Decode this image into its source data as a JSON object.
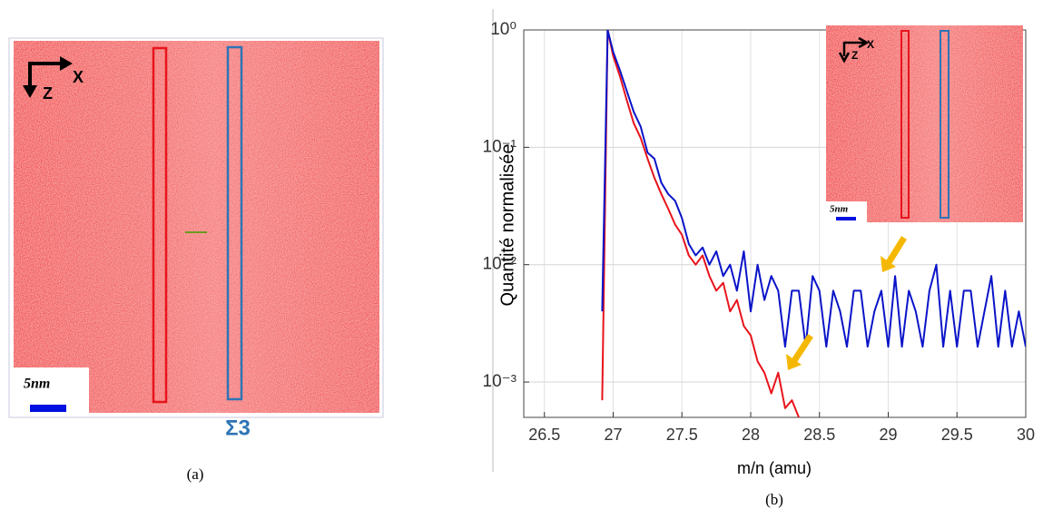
{
  "panel_a": {
    "axis_x": "X",
    "axis_z": "Z",
    "scale": "5nm",
    "boundary": "Σ3",
    "caption": "(a)"
  },
  "chart_data": {
    "type": "line",
    "caption": "(b)",
    "x_label": "m/n (amu)",
    "y_label": "Quantité normalisée",
    "log_y": true,
    "grid": true,
    "inset": {
      "axis_x": "X",
      "axis_z": "Z",
      "scale": "5nm"
    },
    "xlim": [
      26.35,
      30
    ],
    "ylim": [
      0.0005,
      1
    ],
    "xticks": [
      26.5,
      27,
      27.5,
      28,
      28.5,
      29,
      29.5,
      30
    ],
    "yticks": [
      {
        "value": 0.001,
        "label": "10⁻³"
      },
      {
        "value": 0.01,
        "label": "10⁻²"
      },
      {
        "value": 0.1,
        "label": "10⁻¹"
      },
      {
        "value": 1,
        "label": "10⁰"
      }
    ],
    "x": [
      26.92,
      26.96,
      27.0,
      27.05,
      27.1,
      27.15,
      27.2,
      27.25,
      27.3,
      27.35,
      27.4,
      27.45,
      27.5,
      27.55,
      27.6,
      27.65,
      27.7,
      27.75,
      27.8,
      27.85,
      27.9,
      27.95,
      28.0,
      28.05,
      28.1,
      28.15,
      28.2,
      28.25,
      28.3,
      28.35,
      28.4,
      28.45,
      28.5,
      28.55,
      28.6,
      28.65,
      28.7,
      28.75,
      28.8,
      28.85,
      28.9,
      28.95,
      29.0,
      29.05,
      29.1,
      29.15,
      29.2,
      29.25,
      29.3,
      29.35,
      29.4,
      29.45,
      29.5,
      29.55,
      29.6,
      29.65,
      29.7,
      29.75,
      29.8,
      29.85,
      29.9,
      29.95,
      30.0
    ],
    "series": [
      {
        "color": "#e8141c",
        "values": [
          0.0007,
          1,
          0.6,
          0.4,
          0.25,
          0.16,
          0.12,
          0.08,
          0.055,
          0.04,
          0.03,
          0.022,
          0.018,
          0.012,
          0.01,
          0.012,
          0.008,
          0.006,
          0.007,
          0.004,
          0.005,
          0.003,
          0.0025,
          0.0015,
          0.0012,
          0.0008,
          0.0012,
          0.0006,
          0.0007,
          0.0005,
          null,
          null,
          null,
          null,
          null,
          null,
          null,
          null,
          null,
          null,
          null,
          null,
          null,
          null,
          null,
          null,
          null,
          null,
          null,
          null,
          null,
          null,
          null,
          null,
          null,
          null,
          null,
          null,
          null,
          null,
          null,
          null,
          null
        ]
      },
      {
        "color": "#0a14c8",
        "values": [
          0.004,
          1,
          0.65,
          0.45,
          0.3,
          0.2,
          0.15,
          0.09,
          0.08,
          0.05,
          0.04,
          0.035,
          0.025,
          0.015,
          0.012,
          0.014,
          0.01,
          0.013,
          0.008,
          0.01,
          0.006,
          0.013,
          0.004,
          0.01,
          0.005,
          0.008,
          0.006,
          0.002,
          0.006,
          0.006,
          0.002,
          0.008,
          0.006,
          0.002,
          0.006,
          0.004,
          0.002,
          0.006,
          0.006,
          0.002,
          0.004,
          0.006,
          0.002,
          0.008,
          0.002,
          0.006,
          0.004,
          0.002,
          0.006,
          0.01,
          0.002,
          0.006,
          0.002,
          0.006,
          0.006,
          0.002,
          0.004,
          0.008,
          0.002,
          0.006,
          0.002,
          0.004,
          0.002
        ]
      }
    ]
  }
}
